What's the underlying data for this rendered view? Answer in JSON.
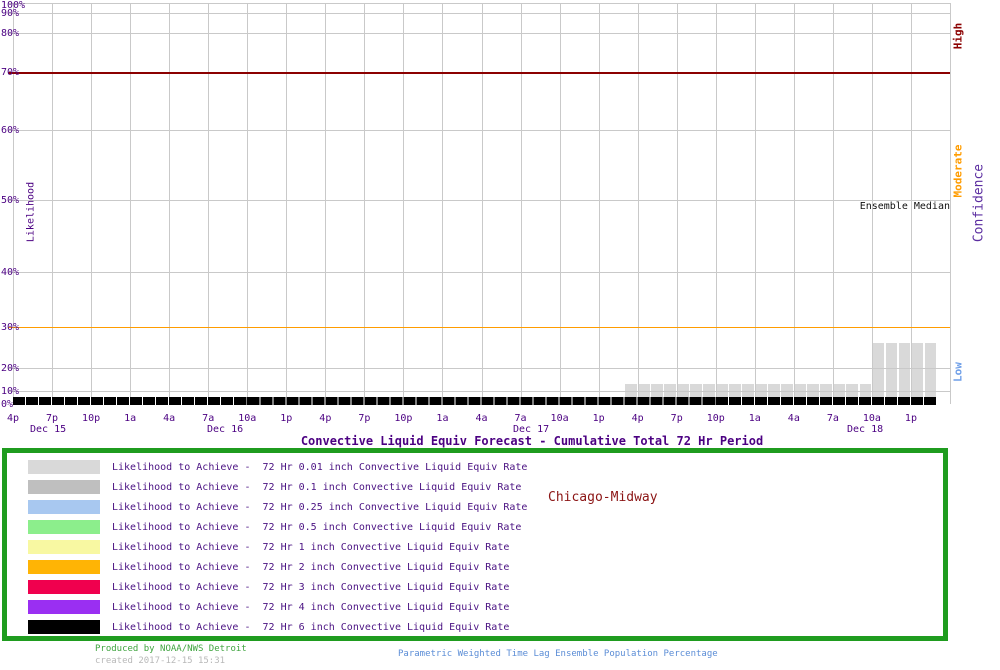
{
  "title": "Convective Liquid Equiv Forecast - Cumulative Total 72 Hr Period",
  "station_label": "Chicago-Midway",
  "annotations": {
    "ensemble_median": "Ensemble Median",
    "likelihood_axis": "Likelihood",
    "confidence_axis": "Confidence",
    "confidence_levels": {
      "high": "High",
      "moderate": "Moderate",
      "low": "Low"
    }
  },
  "chart_data": {
    "type": "bar",
    "title": "Convective Liquid Equiv Forecast - Cumulative Total 72 Hr Period",
    "ylabel": "Likelihood",
    "right_axis_label": "Confidence",
    "y_axis": {
      "labels": [
        "100%",
        "90%",
        "80%",
        "70%",
        "60%",
        "50%",
        "40%",
        "30%",
        "20%",
        "10%",
        "0%"
      ],
      "range": [
        0,
        100
      ],
      "scale": "probability (probit-like non-linear spacing)",
      "grid": true
    },
    "x_axis": {
      "start": "4p Dec 15",
      "end": "4p Dec 18",
      "total_hours": 72,
      "tick_interval_hours": 3,
      "tick_labels": [
        "4p",
        "7p",
        "10p",
        "1a",
        "4a",
        "7a",
        "10a",
        "1p",
        "4p",
        "7p",
        "10p",
        "1a",
        "4a",
        "7a",
        "10a",
        "1p",
        "4p",
        "7p",
        "10p",
        "1a",
        "4a",
        "7a",
        "10a",
        "1p"
      ],
      "date_labels": [
        "Dec 15",
        "Dec 16",
        "Dec 17",
        "Dec 18"
      ],
      "grid": true
    },
    "reference_lines": [
      {
        "pct": 70,
        "color": "#8b0000",
        "label": "High confidence threshold"
      },
      {
        "pct": 30,
        "color": "#ff9c00",
        "label": "Moderate confidence threshold"
      }
    ],
    "series": [
      {
        "name": "Likelihood to Achieve - 72 Hr 0.01 inch Convective Liquid Equiv Rate",
        "color": "#d9d9d9",
        "bar_width_hours": 1,
        "bars": [
          {
            "from_hour": 47,
            "to_hour": 66,
            "pct": 13
          },
          {
            "from_hour": 66,
            "to_hour": 71,
            "pct": 26
          }
        ]
      }
    ],
    "baseline_band": {
      "name": "Ensemble Median",
      "color": "#000000",
      "from_hour": 0,
      "to_hour": 71,
      "pct": 0
    },
    "legend_position": "bottom"
  },
  "legend": {
    "items": [
      {
        "color": "#d9d9d9",
        "label": "Likelihood to Achieve -  72 Hr 0.01 inch Convective Liquid Equiv Rate"
      },
      {
        "color": "#bfbfbf",
        "label": "Likelihood to Achieve -  72 Hr 0.1 inch Convective Liquid Equiv Rate"
      },
      {
        "color": "#a8c8f0",
        "label": "Likelihood to Achieve -  72 Hr 0.25 inch Convective Liquid Equiv Rate"
      },
      {
        "color": "#8cee8c",
        "label": "Likelihood to Achieve -  72 Hr 0.5 inch Convective Liquid Equiv Rate"
      },
      {
        "color": "#f8f8a2",
        "label": "Likelihood to Achieve -  72 Hr 1 inch Convective Liquid Equiv Rate"
      },
      {
        "color": "#ffb405",
        "label": "Likelihood to Achieve -  72 Hr 2 inch Convective Liquid Equiv Rate"
      },
      {
        "color": "#f0004e",
        "label": "Likelihood to Achieve -  72 Hr 3 inch Convective Liquid Equiv Rate"
      },
      {
        "color": "#9a2ff2",
        "label": "Likelihood to Achieve -  72 Hr 4 inch Convective Liquid Equiv Rate"
      },
      {
        "color": "#000000",
        "label": "Likelihood to Achieve -  72 Hr 6 inch Convective Liquid Equiv Rate"
      }
    ]
  },
  "footer": {
    "produced_by": "Produced by NOAA/NWS Detroit",
    "created": "created 2017-12-15 15:31",
    "method": "Parametric Weighted Time Lag Ensemble Population Percentage"
  }
}
